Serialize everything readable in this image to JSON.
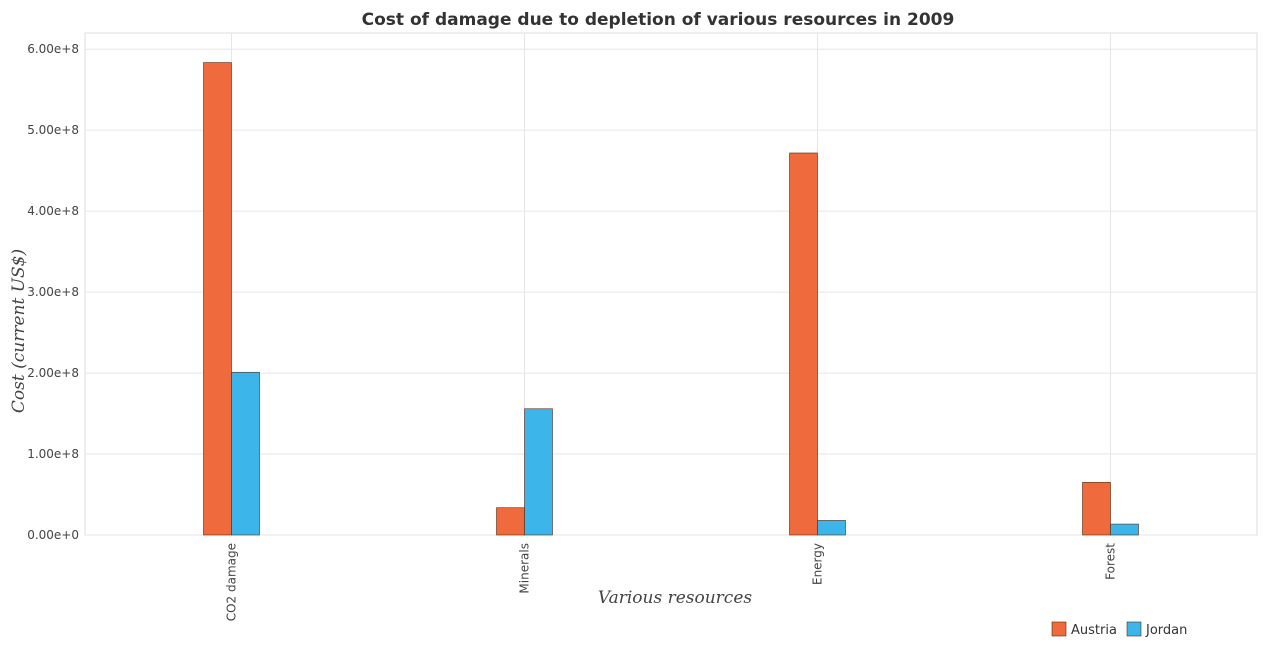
{
  "chart_data": {
    "type": "bar",
    "title": "Cost of damage due to depletion of various resources in 2009",
    "xlabel": "Various resources",
    "ylabel": "Cost (current US$)",
    "categories": [
      "CO2 damage",
      "Minerals",
      "Energy",
      "Forest"
    ],
    "series": [
      {
        "name": "Austria",
        "color": "#ef6a3c",
        "values": [
          583500000,
          33700000,
          471800000,
          65000000
        ]
      },
      {
        "name": "Jordan",
        "color": "#3cb6ea",
        "values": [
          201000000,
          155900000,
          18000000,
          13500000
        ]
      }
    ],
    "ylim": [
      0,
      620000000
    ],
    "yticks": [
      0,
      100000000,
      200000000,
      300000000,
      400000000,
      500000000,
      600000000
    ],
    "ytick_labels": [
      "0.00e+0",
      "1.00e+8",
      "2.00e+8",
      "3.00e+8",
      "4.00e+8",
      "5.00e+8",
      "6.00e+8"
    ],
    "grid": true,
    "legend_position": "bottom-right"
  }
}
